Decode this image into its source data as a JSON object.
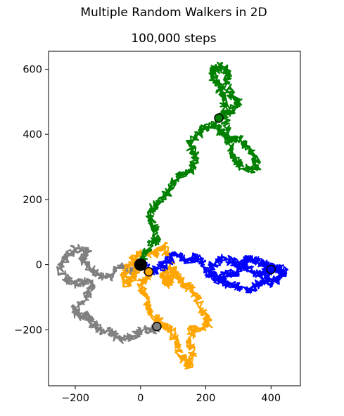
{
  "chart_data": {
    "type": "scatter",
    "title": "Multiple Random Walkers in 2D",
    "subtitle": "100,000 steps",
    "xlabel": "",
    "ylabel": "",
    "xlim": [
      -282,
      490
    ],
    "ylim": [
      -372,
      655
    ],
    "x_ticks": [
      -200,
      0,
      200,
      400
    ],
    "y_ticks": [
      -200,
      0,
      200,
      400,
      600
    ],
    "x_tick_labels": [
      "−200",
      "0",
      "200",
      "400"
    ],
    "y_tick_labels": [
      "−200",
      "0",
      "200",
      "400",
      "600"
    ],
    "grid": false,
    "legend": "none",
    "start_point": {
      "x": 0,
      "y": 0,
      "color": "#000000"
    },
    "series": [
      {
        "color": "#808080",
        "end": {
          "x": 50,
          "y": -190
        },
        "path": [
          [
            0,
            0
          ],
          [
            -30,
            -20
          ],
          [
            -60,
            -5
          ],
          [
            -90,
            -40
          ],
          [
            -130,
            -30
          ],
          [
            -160,
            -10
          ],
          [
            -180,
            20
          ],
          [
            -160,
            40
          ],
          [
            -200,
            50
          ],
          [
            -230,
            20
          ],
          [
            -250,
            -10
          ],
          [
            -230,
            -40
          ],
          [
            -200,
            -60
          ],
          [
            -170,
            -50
          ],
          [
            -150,
            -70
          ],
          [
            -170,
            -100
          ],
          [
            -200,
            -130
          ],
          [
            -190,
            -160
          ],
          [
            -160,
            -150
          ],
          [
            -150,
            -180
          ],
          [
            -120,
            -200
          ],
          [
            -90,
            -210
          ],
          [
            -60,
            -230
          ],
          [
            -20,
            -220
          ],
          [
            10,
            -200
          ],
          [
            40,
            -200
          ],
          [
            50,
            -190
          ]
        ]
      },
      {
        "color": "#ffa500",
        "end": {
          "x": 25,
          "y": -22
        },
        "path": [
          [
            0,
            0
          ],
          [
            -20,
            -30
          ],
          [
            -40,
            -60
          ],
          [
            -50,
            -20
          ],
          [
            -20,
            20
          ],
          [
            10,
            40
          ],
          [
            40,
            30
          ],
          [
            70,
            60
          ],
          [
            90,
            20
          ],
          [
            100,
            -30
          ],
          [
            80,
            -60
          ],
          [
            70,
            -40
          ],
          [
            80,
            -10
          ],
          [
            110,
            -30
          ],
          [
            130,
            -60
          ],
          [
            150,
            -70
          ],
          [
            170,
            -100
          ],
          [
            190,
            -140
          ],
          [
            210,
            -180
          ],
          [
            190,
            -200
          ],
          [
            160,
            -190
          ],
          [
            150,
            -230
          ],
          [
            160,
            -270
          ],
          [
            150,
            -310
          ],
          [
            120,
            -280
          ],
          [
            110,
            -230
          ],
          [
            90,
            -200
          ],
          [
            60,
            -180
          ],
          [
            40,
            -160
          ],
          [
            20,
            -130
          ],
          [
            10,
            -90
          ],
          [
            0,
            -60
          ],
          [
            20,
            -40
          ],
          [
            25,
            -22
          ]
        ]
      },
      {
        "color": "#0000ff",
        "end": {
          "x": 400,
          "y": -15
        },
        "path": [
          [
            0,
            0
          ],
          [
            30,
            -20
          ],
          [
            60,
            -10
          ],
          [
            80,
            10
          ],
          [
            110,
            30
          ],
          [
            140,
            10
          ],
          [
            170,
            30
          ],
          [
            190,
            0
          ],
          [
            210,
            -30
          ],
          [
            240,
            -40
          ],
          [
            270,
            -30
          ],
          [
            300,
            -20
          ],
          [
            320,
            10
          ],
          [
            340,
            20
          ],
          [
            360,
            10
          ],
          [
            380,
            0
          ],
          [
            400,
            -10
          ],
          [
            420,
            -10
          ],
          [
            440,
            -20
          ],
          [
            420,
            -40
          ],
          [
            400,
            -60
          ],
          [
            380,
            -40
          ],
          [
            360,
            -60
          ],
          [
            330,
            -80
          ],
          [
            300,
            -70
          ],
          [
            270,
            -60
          ],
          [
            240,
            -50
          ],
          [
            220,
            -30
          ],
          [
            220,
            0
          ],
          [
            250,
            20
          ],
          [
            280,
            10
          ],
          [
            310,
            0
          ],
          [
            340,
            -20
          ],
          [
            370,
            -30
          ],
          [
            400,
            -15
          ]
        ]
      },
      {
        "color": "#008000",
        "end": {
          "x": 240,
          "y": 450
        },
        "path": [
          [
            0,
            0
          ],
          [
            10,
            30
          ],
          [
            30,
            60
          ],
          [
            50,
            80
          ],
          [
            40,
            120
          ],
          [
            30,
            150
          ],
          [
            40,
            180
          ],
          [
            70,
            200
          ],
          [
            90,
            230
          ],
          [
            110,
            270
          ],
          [
            140,
            280
          ],
          [
            160,
            300
          ],
          [
            170,
            340
          ],
          [
            150,
            370
          ],
          [
            180,
            400
          ],
          [
            200,
            420
          ],
          [
            240,
            430
          ],
          [
            250,
            400
          ],
          [
            270,
            380
          ],
          [
            300,
            390
          ],
          [
            330,
            360
          ],
          [
            350,
            330
          ],
          [
            360,
            300
          ],
          [
            330,
            290
          ],
          [
            300,
            310
          ],
          [
            280,
            340
          ],
          [
            270,
            390
          ],
          [
            260,
            440
          ],
          [
            260,
            490
          ],
          [
            250,
            520
          ],
          [
            240,
            550
          ],
          [
            220,
            580
          ],
          [
            230,
            600
          ],
          [
            250,
            610
          ],
          [
            270,
            590
          ],
          [
            260,
            560
          ],
          [
            280,
            520
          ],
          [
            300,
            500
          ],
          [
            280,
            470
          ],
          [
            250,
            460
          ],
          [
            240,
            450
          ]
        ]
      }
    ]
  }
}
